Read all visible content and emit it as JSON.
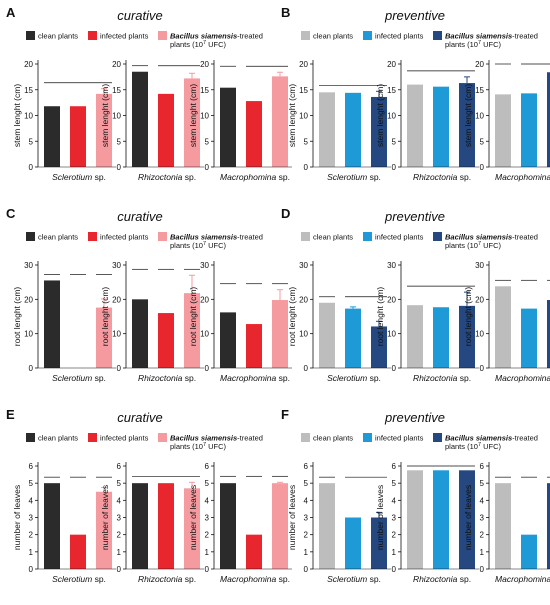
{
  "panels": [
    {
      "letter": "A",
      "title": "curative",
      "legend": [
        {
          "label": "clean plants",
          "color": "#2b2b2b"
        },
        {
          "label": "infected plants",
          "color": "#e8262e"
        },
        {
          "label_em": "Bacillus siamensis",
          "label": "-treated plants (10",
          "sup": "7",
          "label_end": " UFC)",
          "color": "#f59ba0"
        }
      ],
      "colors": [
        "#2b2b2b",
        "#e8262e",
        "#f59ba0"
      ]
    },
    {
      "letter": "B",
      "title": "preventive",
      "legend": [
        {
          "label": "clean plants",
          "color": "#bdbdbd"
        },
        {
          "label": "infected plants",
          "color": "#1e9ad6"
        },
        {
          "label_em": "Bacillus siamensis",
          "label": "-treated plants (10",
          "sup": "7",
          "label_end": " UFC)",
          "color": "#24487f"
        }
      ],
      "colors": [
        "#bdbdbd",
        "#1e9ad6",
        "#24487f"
      ]
    },
    {
      "letter": "C",
      "title": "curative",
      "legend": [
        {
          "label": "clean plants",
          "color": "#2b2b2b"
        },
        {
          "label": "infected plants",
          "color": "#e8262e"
        },
        {
          "label_em": "Bacillus siamensis",
          "label": "-treated plants (10",
          "sup": "7",
          "label_end": " UFC)",
          "color": "#f59ba0"
        }
      ],
      "colors": [
        "#2b2b2b",
        "#e8262e",
        "#f59ba0"
      ]
    },
    {
      "letter": "D",
      "title": "preventive",
      "legend": [
        {
          "label": "clean plants",
          "color": "#bdbdbd"
        },
        {
          "label": "infected plants",
          "color": "#1e9ad6"
        },
        {
          "label_em": "Bacillus siamensis",
          "label": "-treated plants (10",
          "sup": "7",
          "label_end": " UFC)",
          "color": "#24487f"
        }
      ],
      "colors": [
        "#bdbdbd",
        "#1e9ad6",
        "#24487f"
      ]
    },
    {
      "letter": "E",
      "title": "curative",
      "legend": [
        {
          "label": "clean plants",
          "color": "#2b2b2b"
        },
        {
          "label": "infected plants",
          "color": "#e8262e"
        },
        {
          "label_em": "Bacillus siamensis",
          "label": "-treated plants (10",
          "sup": "7",
          "label_end": " UFC)",
          "color": "#f59ba0"
        }
      ],
      "colors": [
        "#2b2b2b",
        "#e8262e",
        "#f59ba0"
      ]
    },
    {
      "letter": "F",
      "title": "preventive",
      "legend": [
        {
          "label": "clean plants",
          "color": "#bdbdbd"
        },
        {
          "label": "infected plants",
          "color": "#1e9ad6"
        },
        {
          "label_em": "Bacillus siamensis",
          "label": "-treated plants (10",
          "sup": "7",
          "label_end": " UFC)",
          "color": "#24487f"
        }
      ],
      "colors": [
        "#bdbdbd",
        "#1e9ad6",
        "#24487f"
      ]
    }
  ],
  "chart_data": [
    {
      "panel": "A",
      "type": "bar",
      "ylabel": "stem lenght (cm)",
      "xlabel": "Sclerotium sp.",
      "ylim": [
        0,
        20
      ],
      "yticks": [
        0,
        5,
        10,
        15,
        20
      ],
      "values": [
        11.8,
        11.8,
        14.2
      ],
      "errors": [
        0,
        0,
        1.0
      ],
      "sig_lines": "spanning"
    },
    {
      "panel": "A",
      "type": "bar",
      "ylabel": "stem lenght (cm)",
      "xlabel": "Rhizoctonia sp.",
      "ylim": [
        0,
        20
      ],
      "yticks": [
        0,
        5,
        10,
        15,
        20
      ],
      "values": [
        18.5,
        14.2,
        17.2
      ],
      "errors": [
        0,
        0,
        1.0
      ],
      "sig_lines": "pairs"
    },
    {
      "panel": "A",
      "type": "bar",
      "ylabel": "stem lenght (cm)",
      "xlabel": "Macrophomina sp.",
      "ylim": [
        0,
        20
      ],
      "yticks": [
        0,
        5,
        10,
        15,
        20
      ],
      "values": [
        15.4,
        12.8,
        17.6
      ],
      "errors": [
        0,
        0,
        0.8
      ],
      "sig_lines": "pairs"
    },
    {
      "panel": "B",
      "type": "bar",
      "ylabel": "stem lenght (cm)",
      "xlabel": "Sclerotium sp.",
      "ylim": [
        0,
        20
      ],
      "yticks": [
        0,
        5,
        10,
        15,
        20
      ],
      "values": [
        14.5,
        14.4,
        13.6
      ],
      "errors": [
        0,
        0,
        1.1
      ],
      "sig_lines": "spanning"
    },
    {
      "panel": "B",
      "type": "bar",
      "ylabel": "stem lenght (cm)",
      "xlabel": "Rhizoctonia sp.",
      "ylim": [
        0,
        20
      ],
      "yticks": [
        0,
        5,
        10,
        15,
        20
      ],
      "values": [
        16.0,
        15.6,
        16.3
      ],
      "errors": [
        0,
        0,
        1.2
      ],
      "sig_lines": "spanning"
    },
    {
      "panel": "B",
      "type": "bar",
      "ylabel": "stem lenght (cm)",
      "xlabel": "Macrophomina sp.",
      "ylim": [
        0,
        20
      ],
      "yticks": [
        0,
        5,
        10,
        15,
        20
      ],
      "values": [
        14.1,
        14.3,
        18.4
      ],
      "errors": [
        0,
        0,
        1.2
      ],
      "sig_lines": "pairs"
    },
    {
      "panel": "C",
      "type": "bar",
      "ylabel": "root lenght (cm)",
      "xlabel": "Sclerotium sp.",
      "ylim": [
        0,
        30
      ],
      "yticks": [
        0,
        10,
        20,
        30
      ],
      "values": [
        25.5,
        0,
        17.6
      ],
      "errors": [
        0,
        0,
        2.5
      ],
      "sig_lines": "triple"
    },
    {
      "panel": "C",
      "type": "bar",
      "ylabel": "root lenght (cm)",
      "xlabel": "Rhizoctonia sp.",
      "ylim": [
        0,
        30
      ],
      "yticks": [
        0,
        10,
        20,
        30
      ],
      "values": [
        20.0,
        16.0,
        21.8
      ],
      "errors": [
        0,
        0,
        5.2
      ],
      "sig_lines": "triple"
    },
    {
      "panel": "C",
      "type": "bar",
      "ylabel": "root lenght (cm)",
      "xlabel": "Macrophomina sp.",
      "ylim": [
        0,
        30
      ],
      "yticks": [
        0,
        10,
        20,
        30
      ],
      "values": [
        16.2,
        12.8,
        19.8
      ],
      "errors": [
        0,
        0,
        3.0
      ],
      "sig_lines": "triple"
    },
    {
      "panel": "D",
      "type": "bar",
      "ylabel": "root lenght (cm)",
      "xlabel": "Sclerotium sp.",
      "ylim": [
        0,
        30
      ],
      "yticks": [
        0,
        10,
        20,
        30
      ],
      "values": [
        19.0,
        17.3,
        12.1
      ],
      "errors": [
        0,
        0.5,
        1.5
      ],
      "sig_lines": "pairs"
    },
    {
      "panel": "D",
      "type": "bar",
      "ylabel": "root lenght (cm)",
      "xlabel": "Rhizoctonia sp.",
      "ylim": [
        0,
        30
      ],
      "yticks": [
        0,
        10,
        20,
        30
      ],
      "values": [
        18.3,
        17.7,
        18.1
      ],
      "errors": [
        0,
        0,
        4.0
      ],
      "sig_lines": "spanning"
    },
    {
      "panel": "D",
      "type": "bar",
      "ylabel": "root lenght (cm)",
      "xlabel": "Macrophomina sp.",
      "ylim": [
        0,
        30
      ],
      "yticks": [
        0,
        10,
        20,
        30
      ],
      "values": [
        23.8,
        17.3,
        19.8
      ],
      "errors": [
        0,
        0,
        2.5
      ],
      "sig_lines": "triple"
    },
    {
      "panel": "E",
      "type": "bar",
      "ylabel": "number of leaves",
      "xlabel": "Sclerotium sp.",
      "ylim": [
        0,
        6
      ],
      "yticks": [
        0,
        1,
        2,
        3,
        4,
        5,
        6
      ],
      "values": [
        5.0,
        2.0,
        4.5
      ],
      "errors": [
        0,
        0,
        0.25
      ],
      "sig_lines": "triple"
    },
    {
      "panel": "E",
      "type": "bar",
      "ylabel": "number of leaves",
      "xlabel": "Rhizoctonia sp.",
      "ylim": [
        0,
        6
      ],
      "yticks": [
        0,
        1,
        2,
        3,
        4,
        5,
        6
      ],
      "values": [
        5.0,
        5.0,
        4.7
      ],
      "errors": [
        0,
        0,
        0.35
      ],
      "sig_lines": "spanning"
    },
    {
      "panel": "E",
      "type": "bar",
      "ylabel": "number of leaves",
      "xlabel": "Macrophomina sp.",
      "ylim": [
        0,
        6
      ],
      "yticks": [
        0,
        1,
        2,
        3,
        4,
        5,
        6
      ],
      "values": [
        5.0,
        2.0,
        5.0
      ],
      "errors": [
        0,
        0,
        0.05
      ],
      "sig_lines": "triple"
    },
    {
      "panel": "F",
      "type": "bar",
      "ylabel": "number of leaves",
      "xlabel": "Sclerotium sp.",
      "ylim": [
        0,
        6
      ],
      "yticks": [
        0,
        1,
        2,
        3,
        4,
        5,
        6
      ],
      "values": [
        5.0,
        3.0,
        3.0
      ],
      "errors": [
        0,
        0,
        0.3
      ],
      "sig_lines": "pairs"
    },
    {
      "panel": "F",
      "type": "bar",
      "ylabel": "number of leaves",
      "xlabel": "Rhizoctonia sp.",
      "ylim": [
        0,
        6
      ],
      "yticks": [
        0,
        1,
        2,
        3,
        4,
        5,
        6
      ],
      "values": [
        5.75,
        5.75,
        5.75
      ],
      "errors": [
        0,
        0,
        0
      ],
      "sig_lines": "spanning"
    },
    {
      "panel": "F",
      "type": "bar",
      "ylabel": "number of leaves",
      "xlabel": "Macrophomina sp.",
      "ylim": [
        0,
        6
      ],
      "yticks": [
        0,
        1,
        2,
        3,
        4,
        5,
        6
      ],
      "values": [
        5.0,
        2.0,
        5.0
      ],
      "errors": [
        0,
        0,
        0
      ],
      "sig_lines": "triple"
    }
  ]
}
